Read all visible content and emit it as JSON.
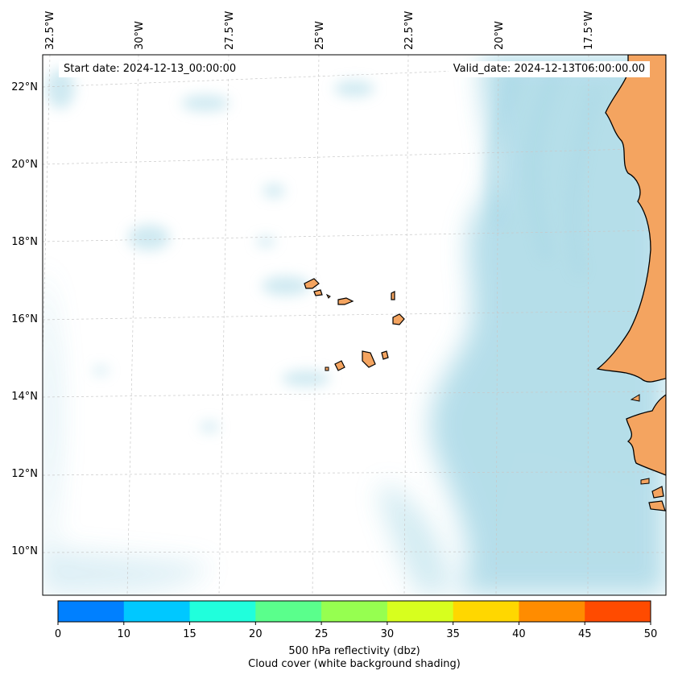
{
  "header": {
    "start_date": "Start date: 2024-12-13_00:00:00",
    "valid_date": "Valid_date: 2024-12-13T06:00:00.00"
  },
  "axes": {
    "lon_labels": [
      "32.5°W",
      "30°W",
      "27.5°W",
      "25°W",
      "22.5°W",
      "20°W",
      "17.5°W"
    ],
    "lat_labels": [
      "22°N",
      "20°N",
      "18°N",
      "16°N",
      "14°N",
      "12°N",
      "10°N"
    ]
  },
  "colorbar": {
    "colors": [
      "#0080ff",
      "#00c8ff",
      "#20ffdc",
      "#5aff8c",
      "#96ff50",
      "#d7ff1e",
      "#ffd700",
      "#ff8c00",
      "#ff4b00"
    ],
    "ticks": [
      "0",
      "10",
      "15",
      "20",
      "25",
      "30",
      "35",
      "40",
      "45",
      "50"
    ],
    "label_line1": "500 hPa reflectivity (dbz)",
    "label_line2": "Cloud cover (white background shading)"
  },
  "palette": {
    "cloud": "#a8d8e6",
    "land": "#f4a460",
    "coast": "#000000",
    "grid": "#c8c8c8"
  }
}
